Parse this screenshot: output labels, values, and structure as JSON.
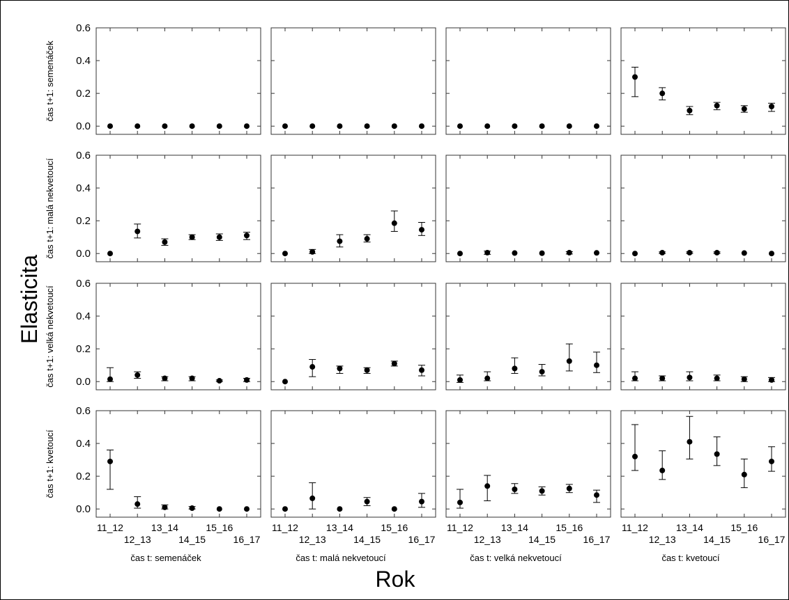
{
  "chart_data": {
    "type": "scatter",
    "ylabel": "Elasticita",
    "xlabel": "Rok",
    "ylim": [
      -0.05,
      0.6
    ],
    "yticks": [
      "0.6",
      "0.4",
      "0.2",
      "0.0"
    ],
    "yticks_values": [
      0.6,
      0.4,
      0.2,
      0.0
    ],
    "categories": [
      "11_12",
      "12_13",
      "13_14",
      "14_15",
      "15_16",
      "16_17"
    ],
    "grid": false,
    "legend": "none",
    "row_labels": [
      "čas t+1: semenáček",
      "čas t+1: malá nekvetoucí",
      "čas t+1: velká nekvetoucí",
      "čas t+1: kvetoucí"
    ],
    "col_labels": [
      "čas t: semenáček",
      "čas t: malá nekvetoucí",
      "čas t: velká nekvetoucí",
      "čas t: kvetoucí"
    ],
    "panels": [
      [
        {
          "values": [
            0,
            0,
            0,
            0,
            0,
            0
          ],
          "lower": [
            0,
            0,
            0,
            0,
            0,
            0
          ],
          "upper": [
            0,
            0,
            0,
            0,
            0,
            0
          ]
        },
        {
          "values": [
            0,
            0,
            0,
            0,
            0,
            0
          ],
          "lower": [
            0,
            0,
            0,
            0,
            0,
            0
          ],
          "upper": [
            0,
            0,
            0,
            0,
            0,
            0
          ]
        },
        {
          "values": [
            0,
            0,
            0,
            0,
            0,
            0
          ],
          "lower": [
            0,
            0,
            0,
            0,
            0,
            0
          ],
          "upper": [
            0,
            0,
            0,
            0,
            0,
            0
          ]
        },
        {
          "values": [
            0.3,
            0.2,
            0.095,
            0.125,
            0.105,
            0.12
          ],
          "lower": [
            0.18,
            0.16,
            0.07,
            0.1,
            0.085,
            0.09
          ],
          "upper": [
            0.36,
            0.235,
            0.12,
            0.145,
            0.125,
            0.14
          ]
        }
      ],
      [
        {
          "values": [
            0.0,
            0.135,
            0.07,
            0.1,
            0.1,
            0.11
          ],
          "lower": [
            0.0,
            0.095,
            0.05,
            0.085,
            0.08,
            0.085
          ],
          "upper": [
            0.0,
            0.18,
            0.09,
            0.115,
            0.12,
            0.13
          ]
        },
        {
          "values": [
            0.0,
            0.01,
            0.075,
            0.09,
            0.185,
            0.145
          ],
          "lower": [
            0.0,
            0.0,
            0.04,
            0.07,
            0.135,
            0.11
          ],
          "upper": [
            0.0,
            0.025,
            0.115,
            0.115,
            0.26,
            0.19
          ]
        },
        {
          "values": [
            0.0,
            0.005,
            0.003,
            0.002,
            0.005,
            0.004
          ],
          "lower": [
            0.0,
            -0.005,
            0.0,
            0.0,
            -0.003,
            0.0
          ],
          "upper": [
            0.0,
            0.015,
            0.006,
            0.004,
            0.012,
            0.008
          ]
        },
        {
          "values": [
            0.0,
            0.005,
            0.005,
            0.005,
            0.003,
            0.0
          ],
          "lower": [
            0.0,
            0.0,
            0.0,
            0.0,
            0.0,
            0.0
          ],
          "upper": [
            0.0,
            0.01,
            0.01,
            0.01,
            0.006,
            0.0
          ]
        }
      ],
      [
        {
          "values": [
            0.015,
            0.04,
            0.02,
            0.02,
            0.005,
            0.01
          ],
          "lower": [
            0.0,
            0.02,
            0.005,
            0.005,
            0.0,
            0.0
          ],
          "upper": [
            0.085,
            0.06,
            0.03,
            0.03,
            0.01,
            0.02
          ]
        },
        {
          "values": [
            0.0,
            0.09,
            0.08,
            0.07,
            0.11,
            0.07
          ],
          "lower": [
            0.0,
            0.03,
            0.05,
            0.05,
            0.095,
            0.035
          ],
          "upper": [
            0.0,
            0.135,
            0.095,
            0.085,
            0.125,
            0.1
          ]
        },
        {
          "values": [
            0.01,
            0.02,
            0.08,
            0.06,
            0.125,
            0.1
          ],
          "lower": [
            -0.005,
            0.005,
            0.05,
            0.035,
            0.065,
            0.055
          ],
          "upper": [
            0.04,
            0.06,
            0.145,
            0.105,
            0.23,
            0.18
          ]
        },
        {
          "values": [
            0.02,
            0.02,
            0.025,
            0.02,
            0.015,
            0.01
          ],
          "lower": [
            0.005,
            0.005,
            0.005,
            0.005,
            0.0,
            0.0
          ],
          "upper": [
            0.06,
            0.035,
            0.06,
            0.04,
            0.03,
            0.025
          ]
        }
      ],
      [
        {
          "values": [
            0.29,
            0.03,
            0.01,
            0.005,
            0.0,
            0.0
          ],
          "lower": [
            0.12,
            0.005,
            0.0,
            0.0,
            0.0,
            0.0
          ],
          "upper": [
            0.36,
            0.075,
            0.025,
            0.015,
            0.0,
            0.0
          ]
        },
        {
          "values": [
            0.0,
            0.065,
            0.0,
            0.045,
            0.0,
            0.045
          ],
          "lower": [
            0.0,
            0.0,
            0.0,
            0.02,
            0.0,
            0.01
          ],
          "upper": [
            0.0,
            0.16,
            0.0,
            0.07,
            0.0,
            0.095
          ]
        },
        {
          "values": [
            0.04,
            0.14,
            0.12,
            0.11,
            0.125,
            0.085
          ],
          "lower": [
            0.005,
            0.05,
            0.095,
            0.085,
            0.1,
            0.04
          ],
          "upper": [
            0.12,
            0.205,
            0.155,
            0.135,
            0.15,
            0.115
          ]
        },
        {
          "values": [
            0.32,
            0.235,
            0.41,
            0.335,
            0.21,
            0.29
          ],
          "lower": [
            0.235,
            0.18,
            0.305,
            0.265,
            0.13,
            0.23
          ],
          "upper": [
            0.515,
            0.355,
            0.565,
            0.44,
            0.305,
            0.38
          ]
        }
      ]
    ]
  }
}
